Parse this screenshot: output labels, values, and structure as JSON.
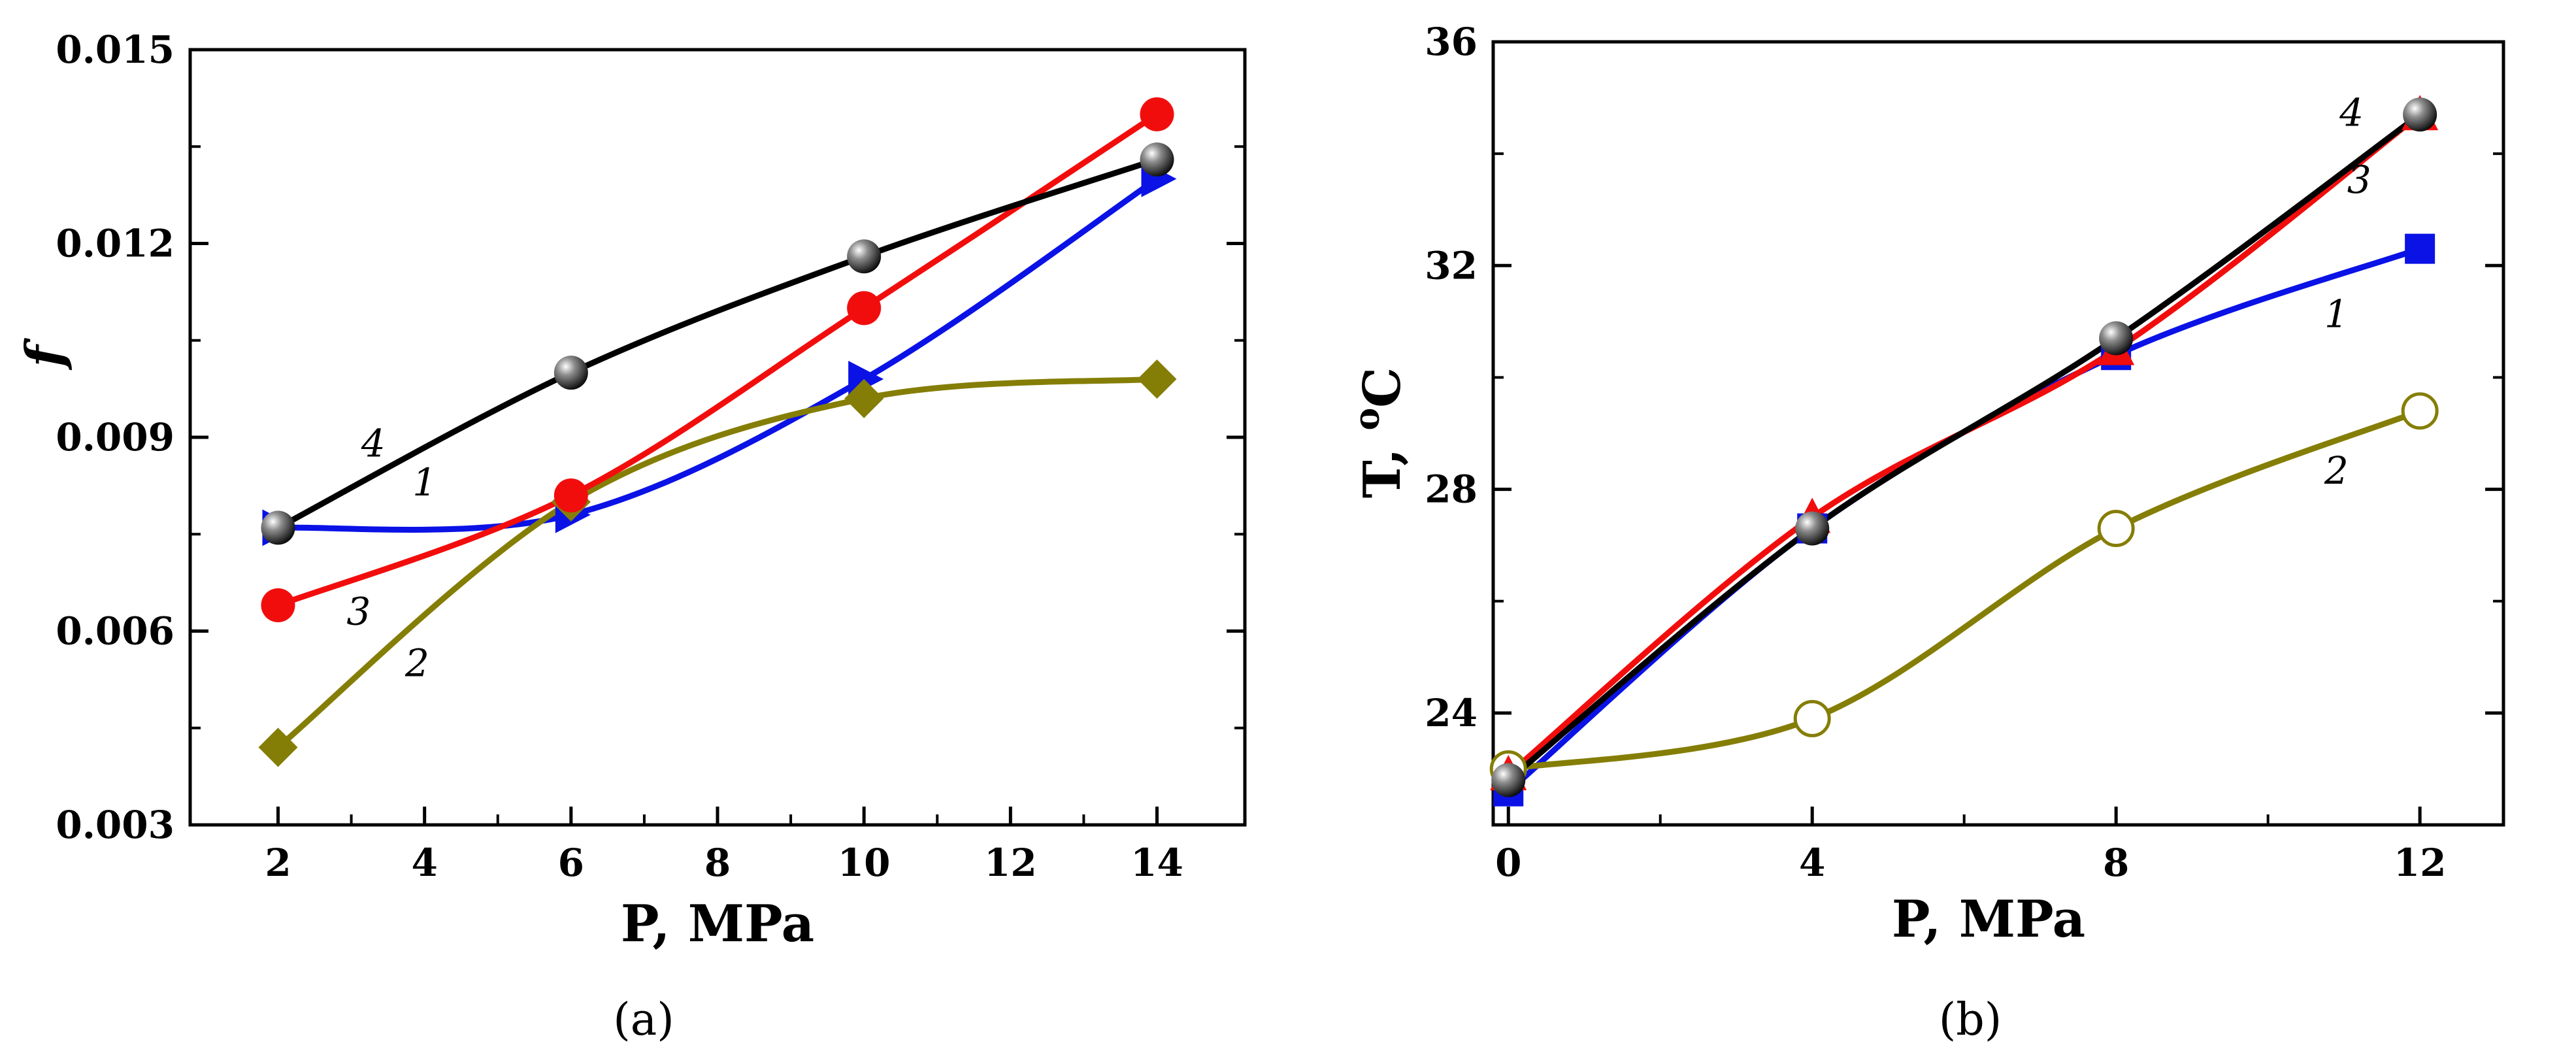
{
  "figure": {
    "panels": [
      "(a)",
      "(b)"
    ]
  },
  "chart_data": [
    {
      "type": "line",
      "panel_label": "(a)",
      "title": "",
      "xlabel": "P, MPa",
      "ylabel": "f",
      "xlim": [
        0.8,
        15.2
      ],
      "ylim": [
        0.003,
        0.015
      ],
      "xticks": [
        2,
        4,
        6,
        8,
        10,
        12,
        14
      ],
      "xtick_labels": [
        "2",
        "4",
        "6",
        "8",
        "10",
        "12",
        "14"
      ],
      "yticks": [
        0.003,
        0.006,
        0.009,
        0.012,
        0.015
      ],
      "ytick_labels": [
        "0.003",
        "0.006",
        "0.009",
        "0.012",
        "0.015"
      ],
      "grid": false,
      "series": [
        {
          "name": "1",
          "color": "#0a12e6",
          "marker": "triangle-right",
          "x": [
            2,
            6,
            10,
            14
          ],
          "y": [
            0.0076,
            0.0078,
            0.0099,
            0.013
          ],
          "label_at": [
            4,
            0.0081
          ]
        },
        {
          "name": "2",
          "color": "#857e06",
          "marker": "diamond",
          "x": [
            2,
            6,
            10,
            14
          ],
          "y": [
            0.0042,
            0.008,
            0.0096,
            0.0099
          ],
          "label_at": [
            3.9,
            0.0053
          ]
        },
        {
          "name": "3",
          "color": "#f20d0d",
          "marker": "circle",
          "x": [
            2,
            6,
            10,
            14
          ],
          "y": [
            0.0064,
            0.0081,
            0.011,
            0.014
          ],
          "label_at": [
            3.1,
            0.0061
          ]
        },
        {
          "name": "4",
          "color": "#000000",
          "marker": "sphere",
          "x": [
            2,
            6,
            10,
            14
          ],
          "y": [
            0.0076,
            0.01,
            0.0118,
            0.0133
          ],
          "label_at": [
            3.3,
            0.0087
          ]
        }
      ]
    },
    {
      "type": "line",
      "panel_label": "(b)",
      "title": "",
      "xlabel": "P, MPa",
      "ylabel_main": "T, ",
      "ylabel_sup": "o",
      "ylabel_unit": "C",
      "ylabel": "T, oC",
      "xlim": [
        -0.2,
        13.1
      ],
      "ylim": [
        22,
        36
      ],
      "xticks": [
        0,
        4,
        8,
        12
      ],
      "xtick_labels": [
        "0",
        "4",
        "8",
        "12"
      ],
      "yticks": [
        24,
        28,
        32,
        36
      ],
      "ytick_labels": [
        "24",
        "28",
        "32",
        "36"
      ],
      "grid": false,
      "series": [
        {
          "name": "1",
          "color": "#0a12e6",
          "marker": "square",
          "x": [
            0,
            4,
            8,
            12
          ],
          "y": [
            22.6,
            27.3,
            30.4,
            32.3
          ],
          "label_at": [
            10.9,
            30.9
          ]
        },
        {
          "name": "2",
          "color": "#857e06",
          "marker": "open-circle",
          "x": [
            0,
            4,
            8,
            12
          ],
          "y": [
            23.0,
            23.9,
            27.3,
            29.4
          ],
          "label_at": [
            10.9,
            28.1
          ]
        },
        {
          "name": "3",
          "color": "#f20d0d",
          "marker": "triangle-up",
          "x": [
            0,
            4,
            8,
            12
          ],
          "y": [
            22.9,
            27.5,
            30.5,
            34.7
          ],
          "label_at": [
            11.2,
            33.3
          ]
        },
        {
          "name": "4",
          "color": "#000000",
          "marker": "sphere",
          "x": [
            0,
            4,
            8,
            12
          ],
          "y": [
            22.8,
            27.3,
            30.7,
            34.7
          ],
          "label_at": [
            11.1,
            34.5
          ]
        }
      ]
    }
  ]
}
